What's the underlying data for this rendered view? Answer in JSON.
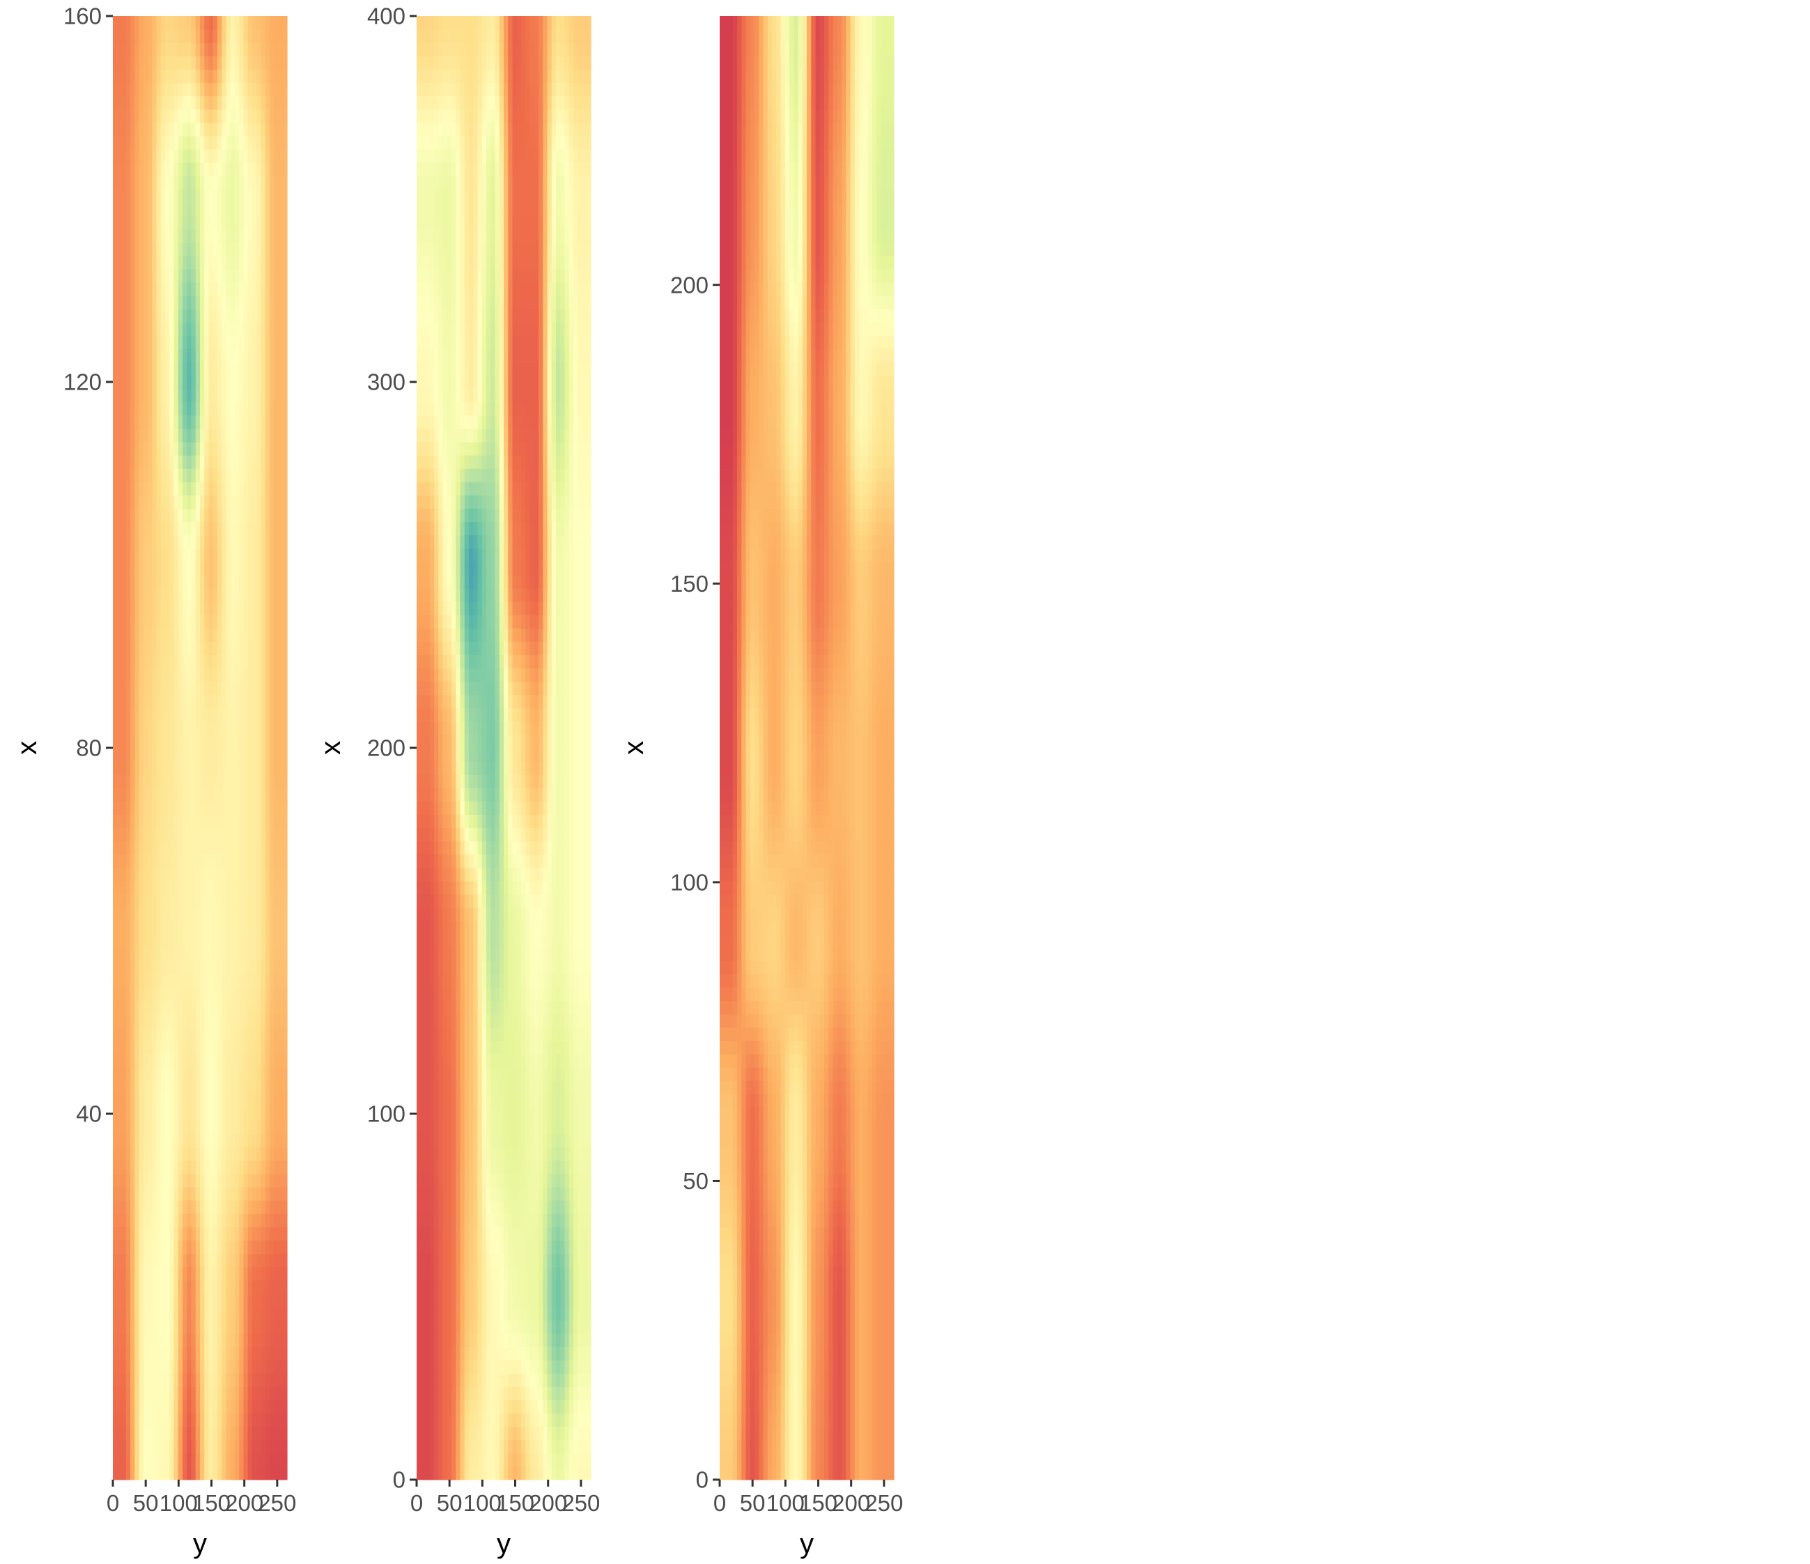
{
  "chart_data": [
    {
      "type": "heatmap",
      "panel": 1,
      "title": "",
      "xlabel": "y",
      "ylabel": "x",
      "xlim": [
        0,
        265
      ],
      "ylim": [
        0,
        160
      ],
      "xticks": [
        0,
        50,
        100,
        150,
        200,
        250
      ],
      "yticks": [
        40,
        80,
        120,
        160
      ],
      "xtick_labels": [
        "0",
        "50",
        "100",
        "150",
        "200",
        "250"
      ],
      "ytick_labels": [
        "40",
        "80",
        "120",
        "160"
      ],
      "grid": false,
      "legend": "none",
      "rows_bottom_to_top": [
        {
          "x": 0,
          "values": [
            0.85,
            0.05,
            0.1,
            0.9,
            0.2,
            0.55,
            0.92,
            0.96
          ]
        },
        {
          "x": 20,
          "values": [
            0.75,
            0.1,
            0.05,
            0.7,
            0.15,
            0.4,
            0.8,
            0.85
          ]
        },
        {
          "x": 40,
          "values": [
            0.6,
            0.2,
            0.05,
            0.25,
            0.05,
            0.2,
            0.3,
            0.55
          ]
        },
        {
          "x": 60,
          "values": [
            0.55,
            0.3,
            0.2,
            0.15,
            0.1,
            0.15,
            0.2,
            0.45
          ]
        },
        {
          "x": 80,
          "values": [
            0.7,
            0.35,
            0.25,
            0.15,
            0.2,
            0.15,
            0.2,
            0.5
          ]
        },
        {
          "x": 100,
          "values": [
            0.7,
            0.4,
            0.3,
            0.05,
            0.45,
            0.1,
            0.2,
            0.5
          ]
        },
        {
          "x": 120,
          "values": [
            0.7,
            0.5,
            0.15,
            -0.75,
            0.2,
            0.05,
            0.15,
            0.5
          ]
        },
        {
          "x": 140,
          "values": [
            0.7,
            0.5,
            0.05,
            -0.3,
            0.05,
            -0.1,
            0.1,
            0.5
          ]
        },
        {
          "x": 160,
          "values": [
            0.75,
            0.55,
            0.35,
            0.4,
            0.8,
            0.15,
            0.45,
            0.55
          ]
        }
      ]
    },
    {
      "type": "heatmap",
      "panel": 2,
      "title": "",
      "xlabel": "y",
      "ylabel": "x",
      "xlim": [
        0,
        265
      ],
      "ylim": [
        0,
        400
      ],
      "xticks": [
        0,
        50,
        100,
        150,
        200,
        250
      ],
      "yticks": [
        0,
        100,
        200,
        300,
        400
      ],
      "xtick_labels": [
        "0",
        "50",
        "100",
        "150",
        "200",
        "250"
      ],
      "ytick_labels": [
        "0",
        "100",
        "200",
        "300",
        "400"
      ],
      "grid": false,
      "legend": "none",
      "rows_bottom_to_top": [
        {
          "x": 0,
          "values": [
            0.95,
            0.8,
            0.2,
            0.1,
            0.5,
            0.2,
            -0.1,
            0.1
          ]
        },
        {
          "x": 50,
          "values": [
            0.95,
            0.8,
            0.4,
            0.1,
            -0.05,
            -0.1,
            -0.65,
            -0.1
          ]
        },
        {
          "x": 100,
          "values": [
            0.9,
            0.8,
            0.45,
            -0.1,
            -0.15,
            -0.05,
            -0.2,
            -0.05
          ]
        },
        {
          "x": 150,
          "values": [
            0.9,
            0.75,
            0.45,
            -0.35,
            -0.1,
            0.05,
            -0.05,
            0.05
          ]
        },
        {
          "x": 200,
          "values": [
            0.75,
            0.5,
            -0.45,
            -0.6,
            0.25,
            0.5,
            -0.05,
            0.05
          ]
        },
        {
          "x": 250,
          "values": [
            0.55,
            0.05,
            -0.85,
            -0.5,
            0.75,
            0.85,
            -0.05,
            0.05
          ]
        },
        {
          "x": 300,
          "values": [
            0.1,
            -0.05,
            0.2,
            -0.25,
            0.85,
            0.85,
            -0.3,
            0.1
          ]
        },
        {
          "x": 350,
          "values": [
            -0.05,
            -0.1,
            0.25,
            -0.15,
            0.8,
            0.8,
            -0.05,
            0.15
          ]
        },
        {
          "x": 400,
          "values": [
            0.35,
            0.3,
            0.3,
            0.2,
            0.85,
            0.75,
            0.3,
            0.4
          ]
        }
      ]
    },
    {
      "type": "heatmap",
      "panel": 3,
      "title": "",
      "xlabel": "y",
      "ylabel": "x",
      "xlim": [
        0,
        265
      ],
      "ylim": [
        0,
        245
      ],
      "xticks": [
        0,
        50,
        100,
        150,
        200,
        250
      ],
      "yticks": [
        0,
        50,
        100,
        150,
        200
      ],
      "xtick_labels": [
        "0",
        "50",
        "100",
        "150",
        "200",
        "250"
      ],
      "ytick_labels": [
        "0",
        "50",
        "100",
        "150",
        "200"
      ],
      "grid": false,
      "legend": "none",
      "rows_bottom_to_top": [
        {
          "x": 0,
          "values": [
            0.4,
            0.9,
            0.55,
            0.1,
            0.7,
            0.9,
            0.55,
            0.65
          ]
        },
        {
          "x": 30,
          "values": [
            0.3,
            0.85,
            0.65,
            0.1,
            0.65,
            0.9,
            0.55,
            0.65
          ]
        },
        {
          "x": 60,
          "values": [
            0.45,
            0.8,
            0.55,
            0.2,
            0.55,
            0.75,
            0.55,
            0.65
          ]
        },
        {
          "x": 90,
          "values": [
            0.8,
            0.4,
            0.35,
            0.5,
            0.4,
            0.55,
            0.45,
            0.55
          ]
        },
        {
          "x": 120,
          "values": [
            0.95,
            0.3,
            0.55,
            0.35,
            0.6,
            0.5,
            0.45,
            0.55
          ]
        },
        {
          "x": 150,
          "values": [
            0.95,
            0.45,
            0.55,
            0.4,
            0.75,
            0.6,
            0.4,
            0.5
          ]
        },
        {
          "x": 180,
          "values": [
            1.0,
            0.55,
            0.45,
            0.15,
            0.8,
            0.55,
            0.1,
            0.25
          ]
        },
        {
          "x": 210,
          "values": [
            1.0,
            0.65,
            0.35,
            -0.05,
            0.9,
            0.6,
            0.05,
            -0.2
          ]
        },
        {
          "x": 245,
          "values": [
            1.0,
            0.7,
            0.3,
            -0.2,
            0.95,
            0.7,
            0.1,
            -0.15
          ]
        }
      ]
    }
  ]
}
